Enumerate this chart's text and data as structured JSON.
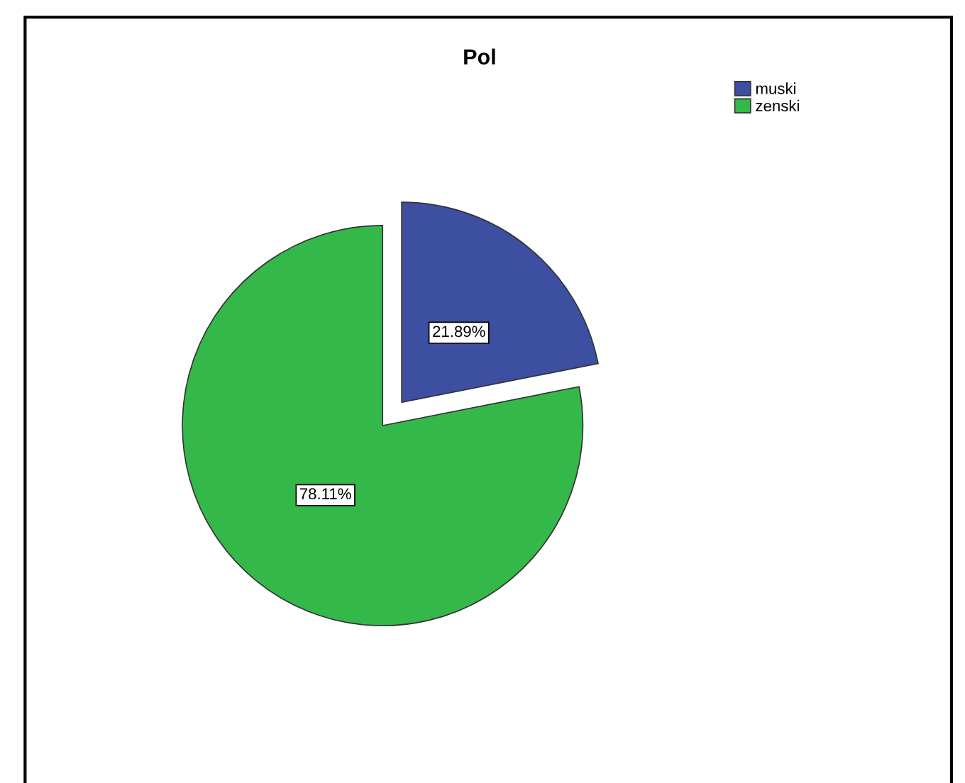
{
  "chart_data": {
    "type": "pie",
    "title": "Pol",
    "categories": [
      "muski",
      "zenski"
    ],
    "values": [
      21.89,
      78.11
    ],
    "colors": [
      "#3c4fa0",
      "#35b84a"
    ],
    "value_labels": [
      "21.89%",
      "78.11%"
    ],
    "legend": "top right"
  }
}
